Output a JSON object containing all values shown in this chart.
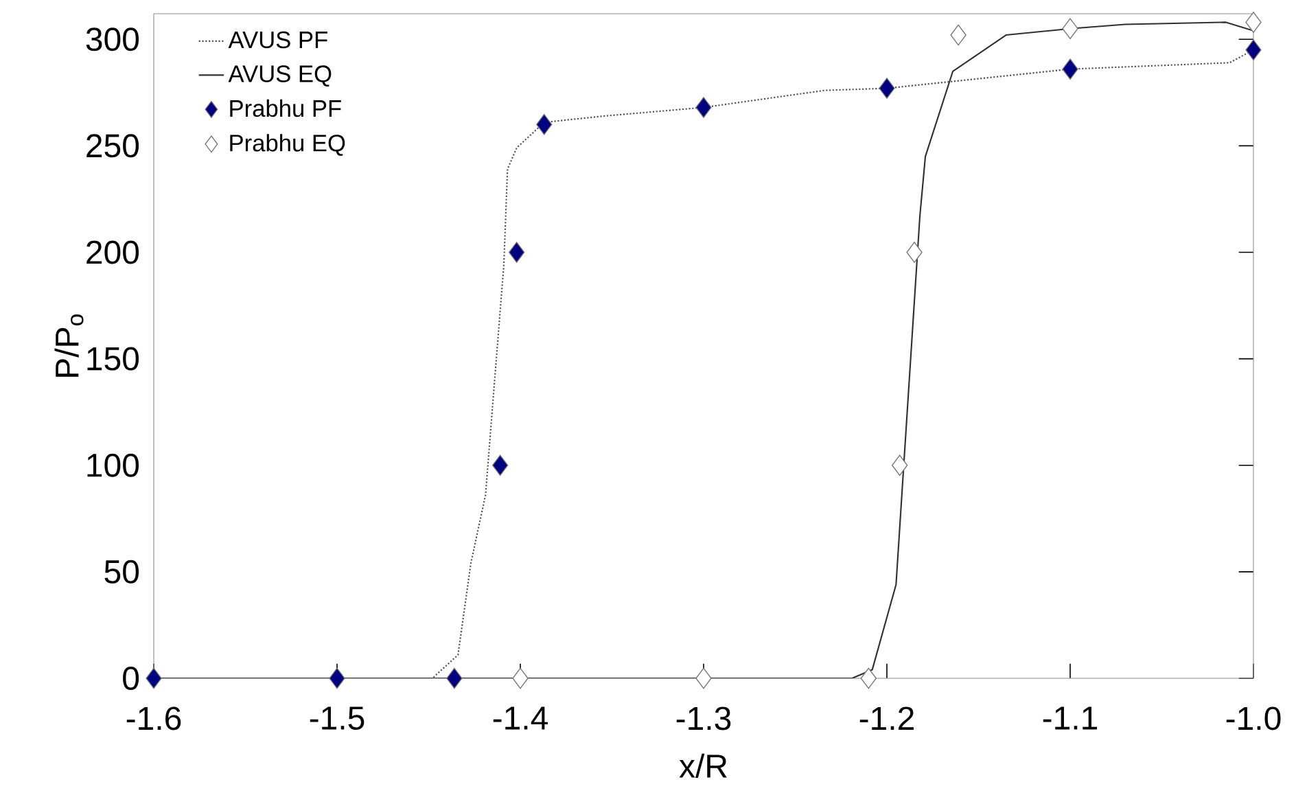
{
  "chart_data": {
    "type": "line",
    "xlabel": "x/R",
    "ylabel": "P/P$_{o}$",
    "xlim": [
      -1.6,
      -1.0
    ],
    "xticks": [
      -1.6,
      -1.5,
      -1.4,
      -1.3,
      -1.2,
      -1.1,
      {
        "value": -1.0,
        "label": "-1.0"
      }
    ],
    "ylim": [
      0,
      312
    ],
    "yticks": [
      0,
      50,
      100,
      150,
      200,
      250,
      300
    ],
    "grid": false,
    "legend": "top left",
    "series": [
      {
        "name": "AVUS PF",
        "line_style": "dotted",
        "marker": "none",
        "color": "#505050",
        "x": [
          -1.6,
          -1.448,
          -1.434,
          -1.427,
          -1.419,
          -1.413,
          -1.409,
          -1.407,
          -1.402,
          -1.387,
          -1.354,
          -1.3,
          -1.234,
          -1.2,
          -1.1,
          -1.013,
          -1.0
        ],
        "values": [
          0,
          0,
          11,
          54,
          86,
          151,
          194,
          239,
          249,
          261,
          264,
          268,
          276,
          277,
          286,
          289,
          295
        ]
      },
      {
        "name": "AVUS EQ",
        "line_style": "solid",
        "marker": "none",
        "color": "#303030",
        "x": [
          -1.6,
          -1.219,
          -1.208,
          -1.195,
          -1.182,
          -1.179,
          -1.164,
          -1.135,
          -1.1,
          -1.07,
          -1.015,
          -1.0
        ],
        "values": [
          0,
          0,
          4,
          44,
          217,
          245,
          285,
          302,
          305,
          307,
          308,
          304
        ]
      },
      {
        "name": "Prabhu PF",
        "type": "scatter",
        "marker": "diamond",
        "color": "#000080",
        "x": [
          -1.6,
          -1.5,
          -1.436,
          -1.411,
          -1.402,
          -1.387,
          -1.3,
          -1.2,
          -1.1,
          -1.0
        ],
        "values": [
          0,
          0,
          0,
          100,
          200,
          260,
          268,
          277,
          286,
          295
        ]
      },
      {
        "name": "Prabhu EQ",
        "type": "scatter",
        "marker": "diamond",
        "color": "#ffffff",
        "x": [
          -1.4,
          -1.3,
          -1.21,
          -1.193,
          -1.185,
          -1.161,
          -1.1,
          -1.0
        ],
        "values": [
          0,
          0,
          0,
          100,
          200,
          302,
          305,
          308
        ]
      }
    ]
  }
}
